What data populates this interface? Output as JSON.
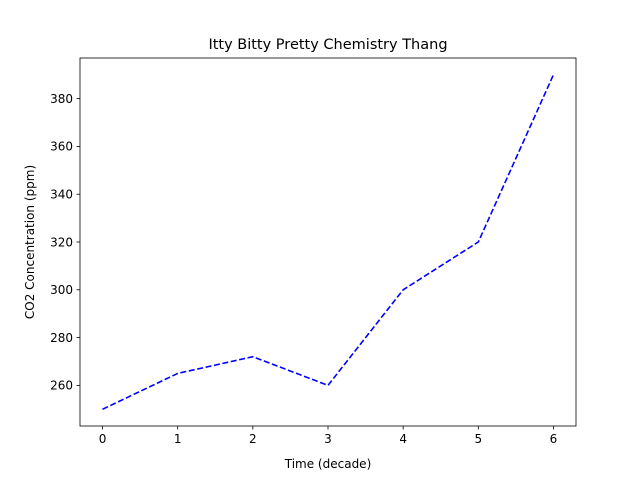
{
  "chart_data": {
    "type": "line",
    "title": "Itty Bitty Pretty Chemistry Thang",
    "xlabel": "Time (decade)",
    "ylabel": "CO2 Concentration (ppm)",
    "x": [
      0,
      1,
      2,
      3,
      4,
      5,
      6
    ],
    "series": [
      {
        "values": [
          250,
          265,
          272,
          260,
          300,
          320,
          390
        ],
        "color": "#0000ff",
        "line_style": "dashed"
      }
    ],
    "xlim": [
      -0.3,
      6.3
    ],
    "ylim": [
      243,
      397
    ],
    "xticks": [
      0,
      1,
      2,
      3,
      4,
      5,
      6
    ],
    "yticks": [
      260,
      280,
      300,
      320,
      340,
      360,
      380
    ],
    "grid": false,
    "legend": "none"
  }
}
